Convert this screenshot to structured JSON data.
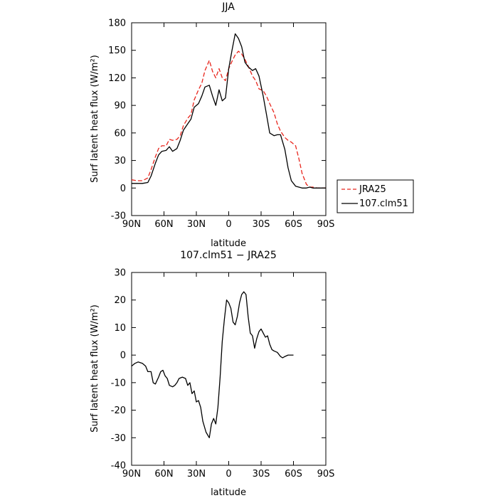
{
  "chart_data": [
    {
      "type": "line",
      "title": "JJA",
      "xlabel": "latitude",
      "ylabel": "Surf latent heat flux (W/m²)",
      "xlim": [
        90,
        -90
      ],
      "ylim": [
        -30,
        180
      ],
      "xticks": [
        90,
        60,
        30,
        0,
        -30,
        -60,
        -90
      ],
      "xtick_labels": [
        "90N",
        "60N",
        "30N",
        "0",
        "30S",
        "60S",
        "90S"
      ],
      "yticks": [
        -30,
        0,
        30,
        60,
        90,
        120,
        150,
        180
      ],
      "ytick_labels": [
        "-30",
        "0",
        "30",
        "60",
        "90",
        "120",
        "150",
        "180"
      ],
      "grid": false,
      "legend_position": "right, outside the plot area",
      "series": [
        {
          "name": "JRA25",
          "color": "#e8251c",
          "dash": true,
          "points": [
            [
              90,
              9
            ],
            [
              85,
              8
            ],
            [
              80,
              8
            ],
            [
              75,
              11
            ],
            [
              72,
              20
            ],
            [
              68,
              34
            ],
            [
              65,
              43
            ],
            [
              62,
              46
            ],
            [
              58,
              46
            ],
            [
              55,
              53
            ],
            [
              52,
              52
            ],
            [
              48,
              53
            ],
            [
              45,
              57
            ],
            [
              42,
              68
            ],
            [
              38,
              76
            ],
            [
              35,
              80
            ],
            [
              32,
              96
            ],
            [
              28,
              107
            ],
            [
              25,
              114
            ],
            [
              22,
              128
            ],
            [
              18,
              139
            ],
            [
              15,
              127
            ],
            [
              12,
              120
            ],
            [
              9,
              130
            ],
            [
              6,
              120
            ],
            [
              3,
              117
            ],
            [
              0,
              130
            ],
            [
              -3,
              138
            ],
            [
              -6,
              145
            ],
            [
              -9,
              149
            ],
            [
              -12,
              146
            ],
            [
              -15,
              140
            ],
            [
              -18,
              133
            ],
            [
              -22,
              122
            ],
            [
              -25,
              117
            ],
            [
              -28,
              108
            ],
            [
              -32,
              106
            ],
            [
              -35,
              100
            ],
            [
              -38,
              92
            ],
            [
              -42,
              82
            ],
            [
              -45,
              70
            ],
            [
              -48,
              62
            ],
            [
              -52,
              55
            ],
            [
              -55,
              52
            ],
            [
              -58,
              50
            ],
            [
              -62,
              46
            ],
            [
              -65,
              32
            ],
            [
              -68,
              16
            ],
            [
              -72,
              4
            ],
            [
              -75,
              1
            ],
            [
              -78,
              1
            ],
            [
              -82,
              0
            ],
            [
              -85,
              0
            ],
            [
              -90,
              0
            ]
          ]
        },
        {
          "name": "107.clm51",
          "color": "#000000",
          "dash": false,
          "points": [
            [
              90,
              5
            ],
            [
              85,
              5
            ],
            [
              80,
              5
            ],
            [
              75,
              6
            ],
            [
              72,
              13
            ],
            [
              68,
              27
            ],
            [
              65,
              36
            ],
            [
              62,
              40
            ],
            [
              58,
              41
            ],
            [
              55,
              45
            ],
            [
              52,
              40
            ],
            [
              48,
              43
            ],
            [
              45,
              52
            ],
            [
              42,
              63
            ],
            [
              38,
              70
            ],
            [
              35,
              75
            ],
            [
              32,
              88
            ],
            [
              28,
              92
            ],
            [
              25,
              100
            ],
            [
              22,
              110
            ],
            [
              18,
              112
            ],
            [
              15,
              100
            ],
            [
              12,
              90
            ],
            [
              9,
              107
            ],
            [
              6,
              95
            ],
            [
              3,
              98
            ],
            [
              0,
              130
            ],
            [
              -3,
              150
            ],
            [
              -6,
              168
            ],
            [
              -9,
              163
            ],
            [
              -12,
              154
            ],
            [
              -15,
              137
            ],
            [
              -18,
              132
            ],
            [
              -22,
              128
            ],
            [
              -25,
              130
            ],
            [
              -28,
              122
            ],
            [
              -32,
              100
            ],
            [
              -35,
              80
            ],
            [
              -38,
              60
            ],
            [
              -42,
              57
            ],
            [
              -45,
              58
            ],
            [
              -48,
              58
            ],
            [
              -52,
              42
            ],
            [
              -55,
              22
            ],
            [
              -58,
              8
            ],
            [
              -62,
              2
            ],
            [
              -65,
              1
            ],
            [
              -68,
              0
            ],
            [
              -72,
              0
            ],
            [
              -75,
              1
            ],
            [
              -78,
              0
            ],
            [
              -82,
              0
            ],
            [
              -85,
              0
            ],
            [
              -90,
              0
            ]
          ]
        }
      ]
    },
    {
      "type": "line",
      "title": "107.clm51 − JRA25",
      "xlabel": "latitude",
      "ylabel": "Surf latent heat flux (W/m²)",
      "xlim": [
        90,
        -90
      ],
      "ylim": [
        -40,
        30
      ],
      "xticks": [
        90,
        60,
        30,
        0,
        -30,
        -60,
        -90
      ],
      "xtick_labels": [
        "90N",
        "60N",
        "30N",
        "0",
        "30S",
        "60S",
        "90S"
      ],
      "yticks": [
        -40,
        -30,
        -20,
        -10,
        0,
        10,
        20,
        30
      ],
      "ytick_labels": [
        "-40",
        "-30",
        "-20",
        "-10",
        "0",
        "10",
        "20",
        "30"
      ],
      "grid": false,
      "series": [
        {
          "color": "#000000",
          "dash": false,
          "points": [
            [
              90,
              -4
            ],
            [
              87,
              -3
            ],
            [
              84,
              -2.5
            ],
            [
              80,
              -3
            ],
            [
              77,
              -4
            ],
            [
              75,
              -6
            ],
            [
              72,
              -6
            ],
            [
              70,
              -10
            ],
            [
              68,
              -10.5
            ],
            [
              65,
              -8
            ],
            [
              63,
              -6
            ],
            [
              61,
              -5.5
            ],
            [
              59,
              -7.5
            ],
            [
              57,
              -8.5
            ],
            [
              55,
              -11
            ],
            [
              52,
              -11.5
            ],
            [
              50,
              -11
            ],
            [
              48,
              -10
            ],
            [
              46,
              -8.5
            ],
            [
              43,
              -8
            ],
            [
              40,
              -8.5
            ],
            [
              38,
              -11
            ],
            [
              36,
              -10
            ],
            [
              34,
              -14
            ],
            [
              32,
              -13
            ],
            [
              30,
              -17
            ],
            [
              28,
              -16.5
            ],
            [
              26,
              -19
            ],
            [
              24,
              -24
            ],
            [
              21,
              -28
            ],
            [
              18,
              -30
            ],
            [
              16,
              -25
            ],
            [
              14,
              -23
            ],
            [
              12,
              -25
            ],
            [
              10,
              -19
            ],
            [
              8,
              -8
            ],
            [
              6,
              5
            ],
            [
              4,
              13
            ],
            [
              2,
              20
            ],
            [
              0,
              19
            ],
            [
              -2,
              17
            ],
            [
              -4,
              12
            ],
            [
              -6,
              11
            ],
            [
              -8,
              14
            ],
            [
              -10,
              19
            ],
            [
              -12,
              22
            ],
            [
              -14,
              23
            ],
            [
              -16,
              22
            ],
            [
              -18,
              14
            ],
            [
              -20,
              8
            ],
            [
              -22,
              7
            ],
            [
              -24,
              2.5
            ],
            [
              -26,
              6
            ],
            [
              -28,
              8.5
            ],
            [
              -30,
              9.5
            ],
            [
              -32,
              8
            ],
            [
              -34,
              6.5
            ],
            [
              -36,
              7
            ],
            [
              -38,
              4
            ],
            [
              -40,
              2
            ],
            [
              -42,
              1.5
            ],
            [
              -45,
              1
            ],
            [
              -48,
              -0.5
            ],
            [
              -50,
              -1
            ],
            [
              -52,
              -0.5
            ],
            [
              -55,
              0
            ],
            [
              -60,
              0
            ]
          ]
        }
      ]
    }
  ]
}
